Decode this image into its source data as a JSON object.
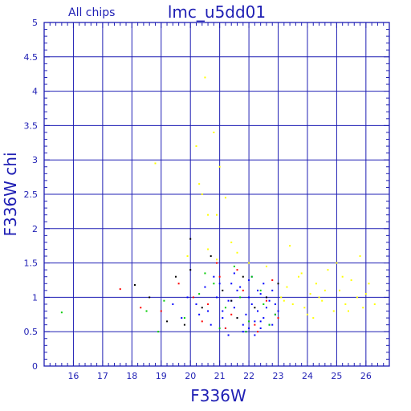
{
  "chart_data": {
    "type": "scatter",
    "title": "lmc_u5dd01",
    "subtitle": "All chips",
    "xlabel": "F336W",
    "ylabel": "F336W chi",
    "xlim": [
      15.0,
      26.8
    ],
    "ylim": [
      0,
      5
    ],
    "xticks": [
      "16",
      "17",
      "18",
      "19",
      "20",
      "21",
      "22",
      "23",
      "24",
      "25",
      "26"
    ],
    "yticks": [
      "0",
      "0.5",
      "1",
      "1.5",
      "2",
      "2.5",
      "3",
      "3.5",
      "4",
      "4.5",
      "5"
    ],
    "grid": true,
    "colors": {
      "axis": "#1f1fb4",
      "grid": "#1f1fb4",
      "series": [
        "#0000ff",
        "#ff0000",
        "#00cc00",
        "#000000",
        "#ffff00"
      ]
    },
    "series": [
      {
        "color": "#0000ff",
        "x": [
          20.2,
          20.6,
          20.9,
          21.1,
          21.3,
          21.5,
          21.6,
          21.8,
          21.9,
          22.0,
          22.1,
          22.2,
          22.3,
          22.4,
          22.5,
          22.6,
          22.7,
          22.8,
          22.9,
          23.0,
          21.4,
          21.7,
          22.0,
          22.3,
          22.6,
          21.2,
          21.9,
          22.4,
          20.8,
          22.8,
          19.4,
          19.9,
          20.5,
          21.0,
          21.5,
          22.1,
          22.5,
          21.3,
          21.8,
          22.2,
          22.7,
          20.7,
          21.1,
          21.6,
          22.0,
          22.4,
          22.9,
          19.7,
          20.3,
          21.4
        ],
        "y": [
          0.9,
          0.8,
          1.0,
          0.7,
          0.95,
          0.85,
          1.1,
          0.6,
          0.75,
          1.0,
          0.9,
          0.65,
          0.8,
          1.05,
          0.7,
          0.85,
          0.95,
          0.6,
          0.75,
          0.8,
          1.2,
          1.15,
          1.25,
          1.1,
          1.0,
          0.55,
          0.5,
          0.55,
          1.3,
          1.1,
          0.9,
          1.0,
          1.15,
          1.2,
          1.35,
          1.3,
          1.2,
          0.45,
          0.5,
          0.45,
          0.6,
          0.6,
          0.8,
          0.7,
          0.55,
          0.65,
          0.9,
          0.7,
          0.75,
          0.95
        ]
      },
      {
        "color": "#ff0000",
        "x": [
          17.6,
          18.3,
          19.0,
          19.6,
          20.1,
          20.6,
          21.0,
          21.4,
          21.8,
          22.2,
          22.6,
          23.0,
          20.9,
          21.6,
          22.3,
          22.8,
          20.4,
          21.2
        ],
        "y": [
          1.12,
          0.85,
          0.8,
          1.2,
          1.0,
          0.9,
          1.3,
          0.75,
          1.1,
          0.6,
          0.95,
          0.7,
          1.5,
          1.4,
          0.5,
          1.25,
          0.65,
          0.55
        ]
      },
      {
        "color": "#00cc00",
        "x": [
          15.6,
          18.5,
          19.1,
          19.8,
          20.3,
          20.8,
          21.2,
          21.7,
          22.1,
          22.5,
          22.9,
          21.0,
          21.5,
          22.0,
          22.4,
          20.5,
          21.9,
          22.7,
          18.9
        ],
        "y": [
          0.78,
          0.8,
          0.95,
          0.7,
          1.05,
          1.2,
          0.85,
          1.0,
          1.3,
          0.9,
          0.75,
          0.55,
          1.45,
          0.65,
          1.1,
          1.35,
          0.5,
          0.6,
          0.5
        ]
      },
      {
        "color": "#000000",
        "x": [
          18.1,
          18.6,
          19.2,
          19.5,
          20.0,
          20.4,
          20.7,
          21.1,
          21.4,
          21.8,
          22.2,
          22.6,
          23.0,
          20.0,
          19.8,
          21.6
        ],
        "y": [
          1.18,
          1.0,
          0.65,
          1.3,
          1.4,
          0.85,
          1.6,
          1.1,
          0.95,
          1.3,
          0.85,
          1.0,
          1.2,
          1.85,
          0.6,
          0.7
        ]
      },
      {
        "color": "#ffff00",
        "x": [
          18.8,
          20.2,
          20.3,
          20.4,
          20.5,
          20.6,
          20.8,
          20.9,
          21.0,
          21.2,
          23.1,
          23.3,
          23.5,
          23.7,
          23.9,
          24.1,
          24.3,
          24.5,
          24.7,
          24.9,
          25.1,
          25.3,
          25.5,
          25.7,
          25.9,
          26.1,
          26.3,
          23.4,
          23.8,
          24.2,
          24.6,
          25.0,
          25.4,
          25.8,
          26.0,
          23.2,
          24.0,
          24.4,
          25.2,
          20.6,
          20.9,
          21.6,
          22.0,
          22.6,
          19.9,
          21.4
        ],
        "y": [
          2.95,
          3.2,
          2.65,
          2.5,
          4.2,
          2.2,
          3.4,
          2.2,
          2.9,
          2.45,
          1.0,
          1.15,
          0.9,
          1.3,
          0.85,
          1.05,
          1.2,
          0.95,
          1.4,
          0.8,
          1.1,
          0.9,
          1.25,
          1.0,
          0.85,
          1.2,
          0.9,
          1.75,
          1.35,
          0.7,
          1.1,
          1.5,
          0.8,
          1.6,
          1.05,
          0.95,
          0.75,
          1.0,
          1.3,
          1.7,
          1.55,
          1.65,
          1.5,
          1.45,
          1.6,
          1.8
        ]
      }
    ]
  }
}
